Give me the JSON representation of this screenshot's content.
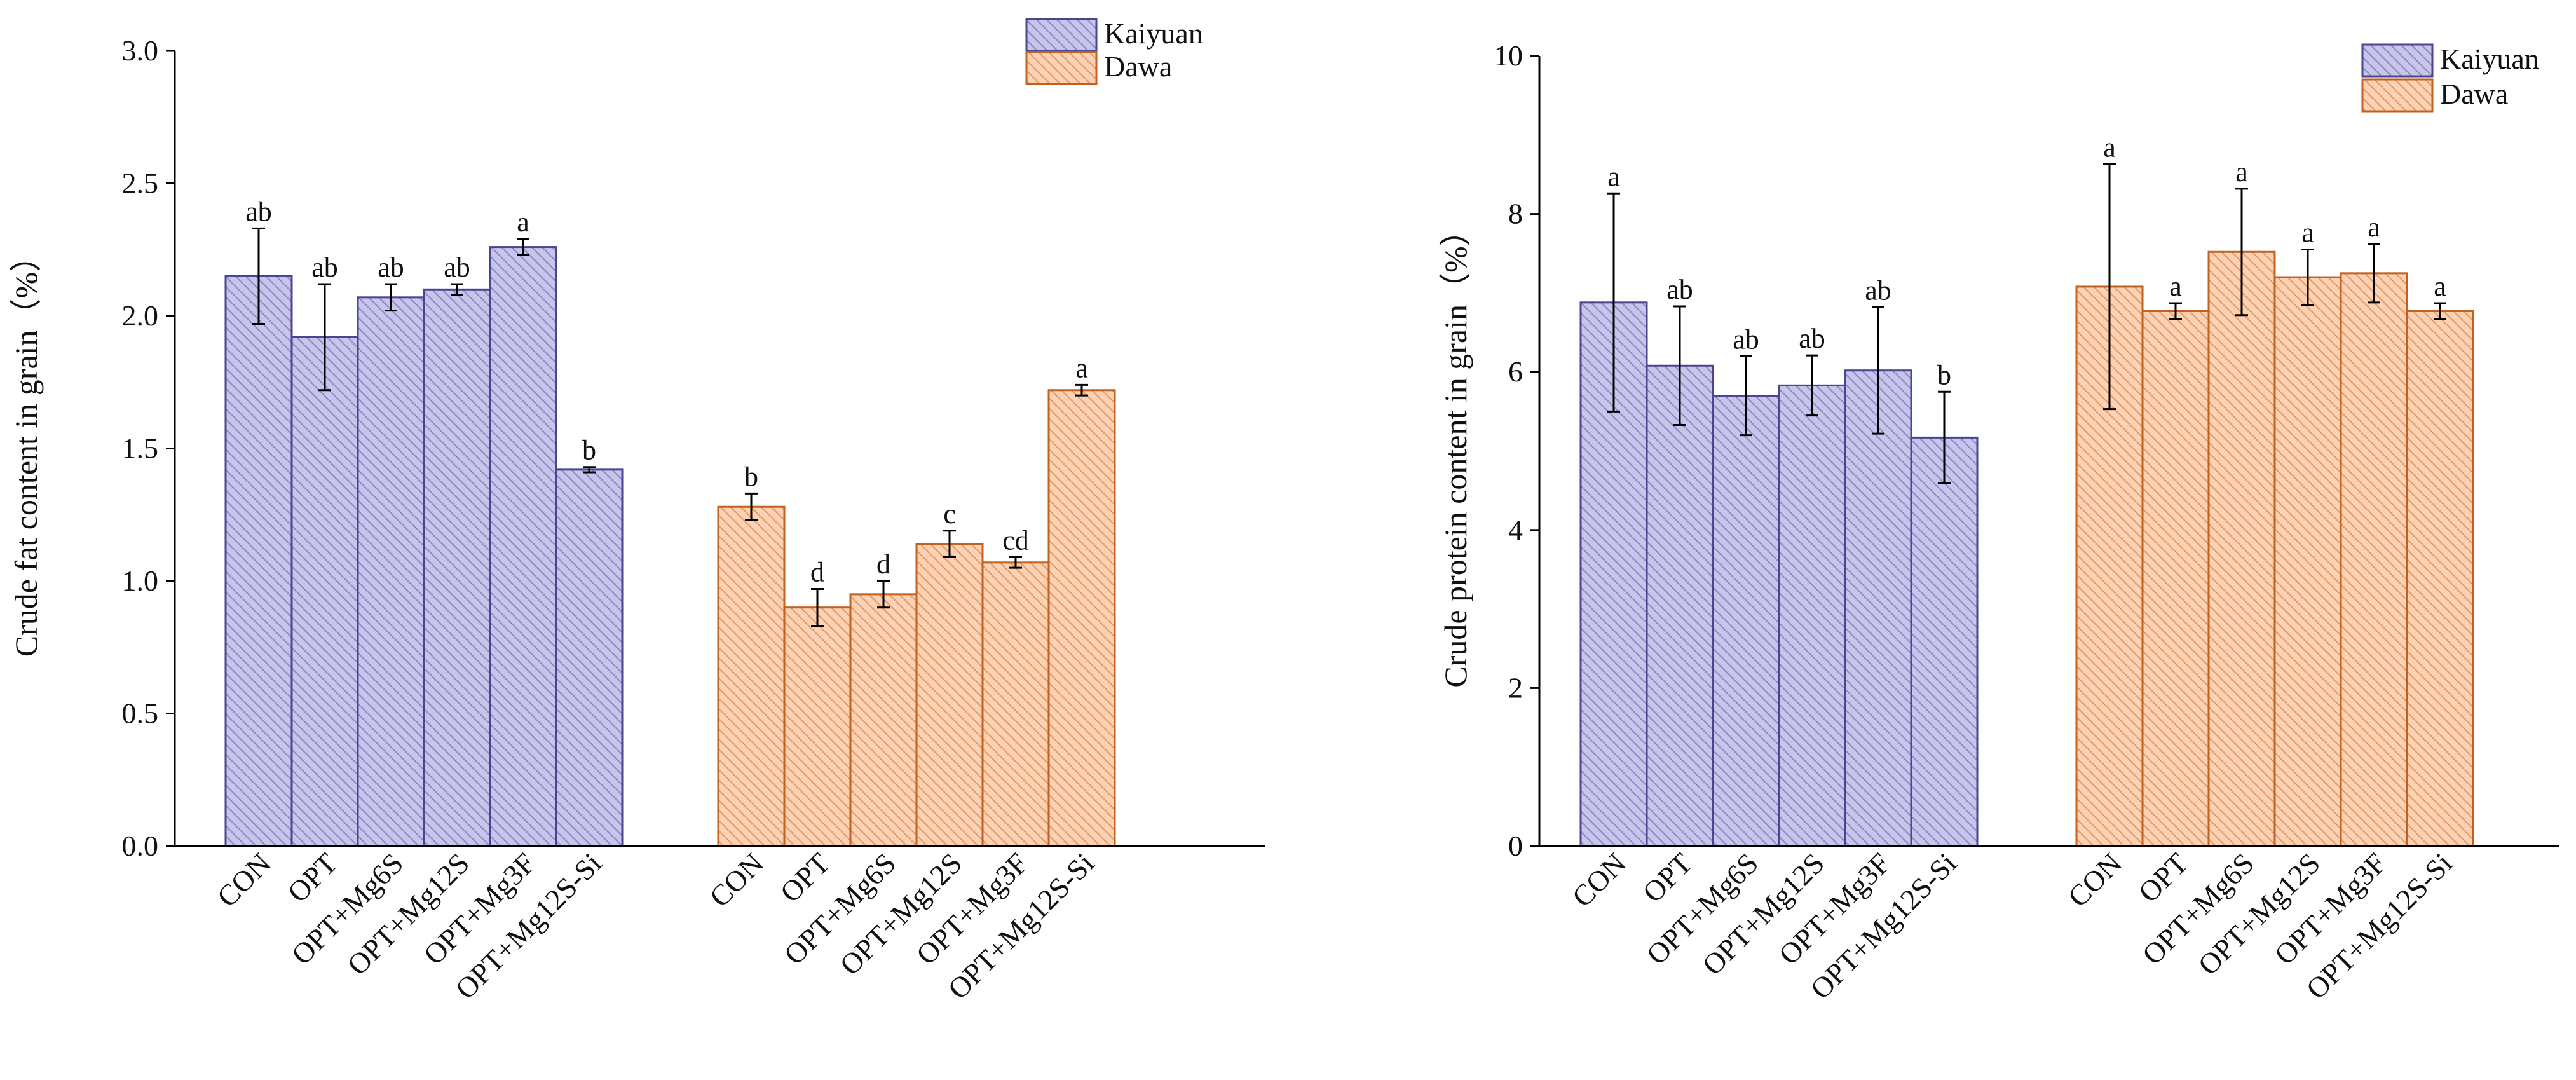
{
  "figure": {
    "title": ""
  },
  "legend": {
    "kaiyuan": {
      "label": "Kaiyuan",
      "fill": "#c8c5ea",
      "hatch": "#8f8ac8",
      "edge": "#4a4590"
    },
    "dawa": {
      "label": "Dawa",
      "fill": "#fbd2b4",
      "hatch": "#e89a6a",
      "edge": "#c2611f"
    }
  },
  "chart_data": [
    {
      "type": "bar",
      "title": "",
      "xlabel": "",
      "ylabel": "Crude fat content in grain（%）",
      "ylim": [
        0,
        3.0
      ],
      "yticks": [
        "0.0",
        "0.5",
        "1.0",
        "1.5",
        "2.0",
        "2.5",
        "3.0"
      ],
      "ytick_values": [
        0,
        0.5,
        1.0,
        1.5,
        2.0,
        2.5,
        3.0
      ],
      "legend_position": "top-right",
      "categories": [
        "CON",
        "OPT",
        "OPT+Mg6S",
        "OPT+Mg12S",
        "OPT+Mg3F",
        "OPT+Mg12S-Si"
      ],
      "series": [
        {
          "name": "Kaiyuan",
          "values": [
            2.15,
            1.92,
            2.07,
            2.1,
            2.26,
            1.42
          ],
          "errors": [
            0.18,
            0.2,
            0.05,
            0.02,
            0.03,
            0.01
          ],
          "letters": [
            "ab",
            "ab",
            "ab",
            "ab",
            "a",
            "b"
          ]
        },
        {
          "name": "Dawa",
          "values": [
            1.28,
            0.9,
            0.95,
            1.14,
            1.07,
            1.72
          ],
          "errors": [
            0.05,
            0.07,
            0.05,
            0.05,
            0.02,
            0.02
          ],
          "letters": [
            "b",
            "d",
            "d",
            "c",
            "cd",
            "a"
          ]
        }
      ]
    },
    {
      "type": "bar",
      "title": "",
      "xlabel": "",
      "ylabel": "Crude protein content in grain（%）",
      "ylim": [
        0,
        10
      ],
      "yticks": [
        "0",
        "2",
        "4",
        "6",
        "8",
        "10"
      ],
      "ytick_values": [
        0,
        2,
        4,
        6,
        8,
        10
      ],
      "legend_position": "top-right",
      "categories": [
        "CON",
        "OPT",
        "OPT+Mg6S",
        "OPT+Mg12S",
        "OPT+Mg3F",
        "OPT+Mg12S-Si"
      ],
      "series": [
        {
          "name": "Kaiyuan",
          "values": [
            6.88,
            6.08,
            5.7,
            5.83,
            6.02,
            5.17
          ],
          "errors": [
            1.38,
            0.75,
            0.5,
            0.38,
            0.8,
            0.58
          ],
          "letters": [
            "a",
            "ab",
            "ab",
            "ab",
            "ab",
            "b"
          ]
        },
        {
          "name": "Dawa",
          "values": [
            7.08,
            6.77,
            7.52,
            7.2,
            7.25,
            6.77
          ],
          "errors": [
            1.55,
            0.1,
            0.8,
            0.35,
            0.37,
            0.1
          ],
          "letters": [
            "a",
            "a",
            "a",
            "a",
            "a",
            "a"
          ]
        }
      ]
    }
  ]
}
